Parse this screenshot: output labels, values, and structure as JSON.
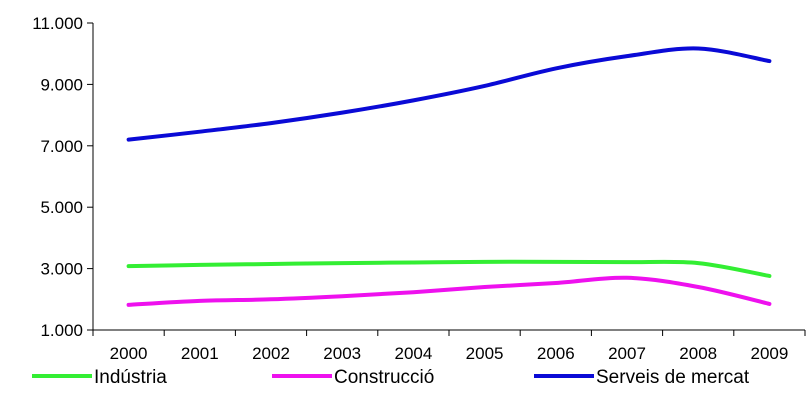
{
  "chart_data": {
    "type": "line",
    "title": "",
    "xlabel": "",
    "ylabel": "",
    "x": [
      "2000",
      "2001",
      "2002",
      "2003",
      "2004",
      "2005",
      "2006",
      "2007",
      "2008",
      "2009"
    ],
    "ylim": [
      1000,
      11000
    ],
    "yticks": [
      1000,
      3000,
      5000,
      7000,
      9000,
      11000
    ],
    "ytick_labels": [
      "1.000",
      "3.000",
      "5.000",
      "7.000",
      "9.000",
      "11.000"
    ],
    "grid": false,
    "legend_position": "bottom",
    "series": [
      {
        "name": "Indústria",
        "color": "#33ee33",
        "values": [
          3080,
          3120,
          3150,
          3180,
          3200,
          3220,
          3220,
          3210,
          3180,
          2760
        ]
      },
      {
        "name": "Construcció",
        "color": "#ee11ee",
        "values": [
          1820,
          1950,
          2000,
          2100,
          2230,
          2400,
          2530,
          2700,
          2400,
          1850
        ]
      },
      {
        "name": "Serveis de mercat",
        "color": "#0a0ad6",
        "values": [
          7200,
          7460,
          7740,
          8080,
          8480,
          8950,
          9520,
          9920,
          10170,
          9760
        ]
      }
    ]
  }
}
